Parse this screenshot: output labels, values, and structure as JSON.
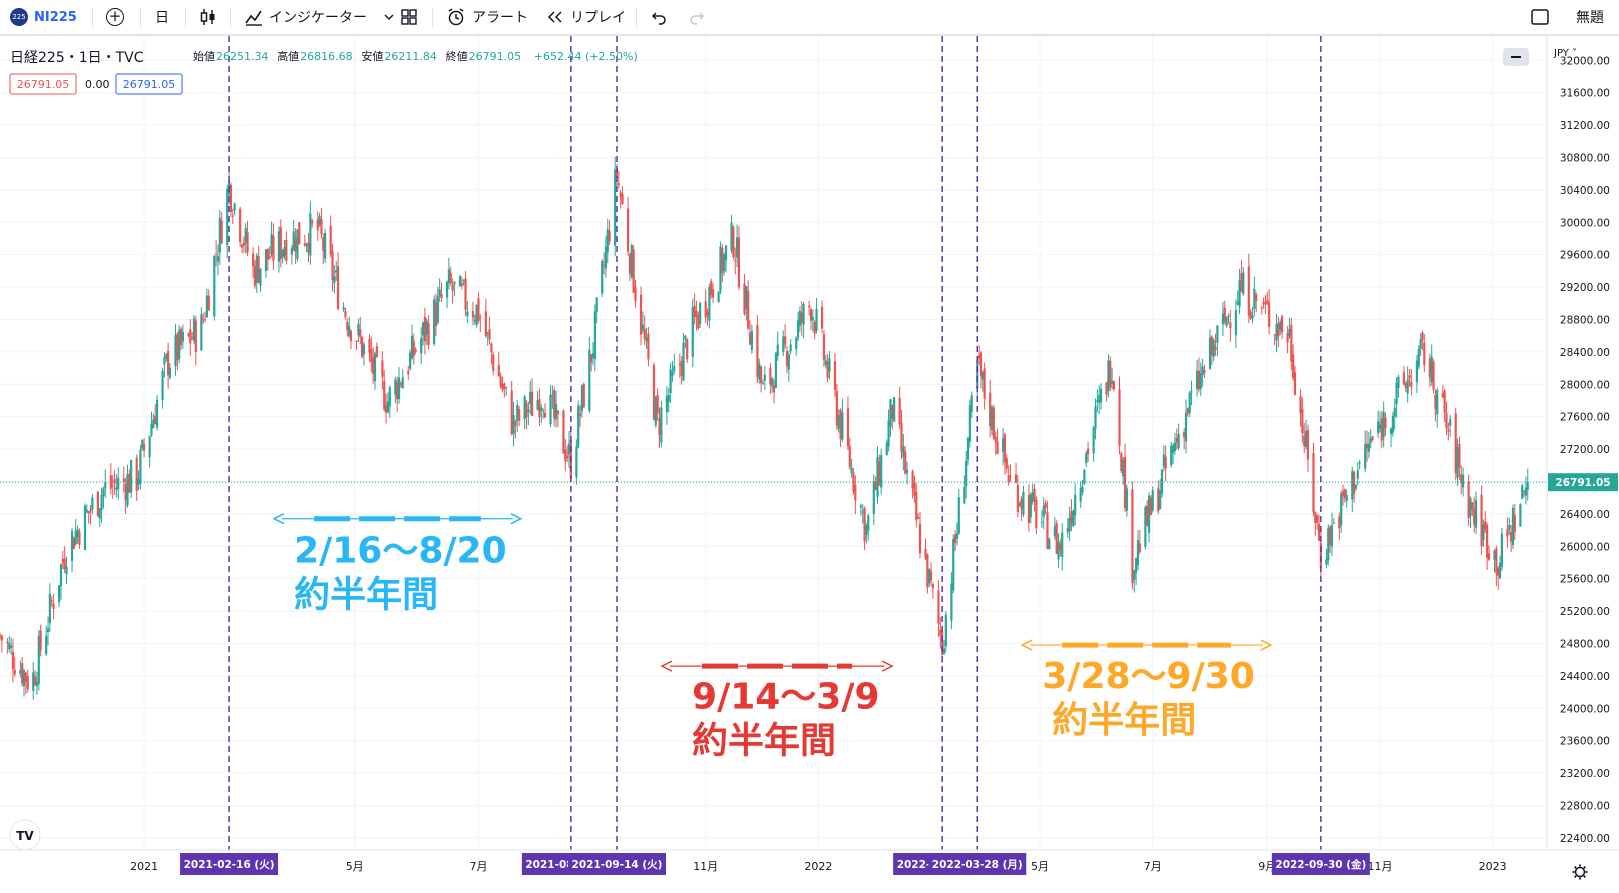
{
  "toolbar": {
    "symbol_badge": "225",
    "symbol": "NI225",
    "add_symbol": "+",
    "interval": "日",
    "indicators": "インジケーター",
    "alert": "アラート",
    "replay": "リプレイ",
    "layout_name": "無題"
  },
  "legend": {
    "title": "日経225・1日・TVC",
    "ohlc": [
      {
        "label": "始値",
        "value": "26251.34"
      },
      {
        "label": "高値",
        "value": "26816.68"
      },
      {
        "label": "安値",
        "value": "26211.84"
      },
      {
        "label": "終値",
        "value": "26791.05"
      }
    ],
    "change": "+652.44 (+2.50%)",
    "bid": "26791.05",
    "spread": "0.00",
    "ask": "26791.05"
  },
  "axis": {
    "currency": "JPY",
    "last_price_label": "26791.05",
    "brand_logo": "TV"
  },
  "chart_data": {
    "type": "candlestick",
    "title": "日経225・1日・TVC",
    "unit": "JPY",
    "ylim": [
      22250,
      32300
    ],
    "y_ticks": [
      22400,
      22800,
      23200,
      23600,
      24000,
      24400,
      24800,
      25200,
      25600,
      26000,
      26400,
      26800,
      27200,
      27600,
      28000,
      28400,
      28800,
      29200,
      29600,
      30000,
      30400,
      30800,
      31200,
      31600,
      32000
    ],
    "x_range": [
      "2020-10-15",
      "2023-01-25"
    ],
    "x_ticks": [
      {
        "date": "2021-01-01",
        "label": "2021"
      },
      {
        "date": "2021-04-25",
        "label": "5月"
      },
      {
        "date": "2021-07-01",
        "label": "7月"
      },
      {
        "date": "2021-11-01",
        "label": "11月"
      },
      {
        "date": "2022-01-01",
        "label": "2022"
      },
      {
        "date": "2022-05-01",
        "label": "5月"
      },
      {
        "date": "2022-07-01",
        "label": "7月"
      },
      {
        "date": "2022-09-01",
        "label": "9月"
      },
      {
        "date": "2022-11-01",
        "label": "11月"
      },
      {
        "date": "2023-01-01",
        "label": "2023"
      }
    ],
    "last_price": 26791.05,
    "colors": {
      "up": "#26a69a",
      "down": "#ef5350",
      "marker": "#5e35b1",
      "grid": "#f0f3fa"
    },
    "price_path": [
      [
        "2020-10-15",
        24900
      ],
      [
        "2020-11-01",
        24300
      ],
      [
        "2020-11-20",
        26000
      ],
      [
        "2020-12-10",
        26700
      ],
      [
        "2020-12-28",
        26850
      ],
      [
        "2021-01-14",
        28300
      ],
      [
        "2021-02-01",
        28700
      ],
      [
        "2021-02-16",
        30460
      ],
      [
        "2021-03-01",
        29400
      ],
      [
        "2021-03-20",
        29800
      ],
      [
        "2021-04-05",
        29900
      ],
      [
        "2021-04-20",
        28900
      ],
      [
        "2021-05-13",
        27800
      ],
      [
        "2021-06-15",
        29200
      ],
      [
        "2021-07-01",
        28900
      ],
      [
        "2021-07-20",
        27500
      ],
      [
        "2021-08-05",
        27900
      ],
      [
        "2021-08-20",
        27050
      ],
      [
        "2021-09-01",
        28500
      ],
      [
        "2021-09-14",
        30600
      ],
      [
        "2021-10-06",
        27500
      ],
      [
        "2021-10-25",
        28700
      ],
      [
        "2021-11-16",
        29800
      ],
      [
        "2021-12-02",
        27900
      ],
      [
        "2021-12-28",
        29000
      ],
      [
        "2022-01-27",
        26200
      ],
      [
        "2022-02-10",
        27700
      ],
      [
        "2022-03-09",
        24800
      ],
      [
        "2022-03-28",
        28200
      ],
      [
        "2022-04-15",
        26800
      ],
      [
        "2022-05-12",
        26000
      ],
      [
        "2022-06-09",
        28300
      ],
      [
        "2022-06-20",
        25800
      ],
      [
        "2022-07-20",
        27700
      ],
      [
        "2022-08-17",
        29200
      ],
      [
        "2022-09-13",
        28600
      ],
      [
        "2022-09-30",
        25900
      ],
      [
        "2022-10-25",
        27200
      ],
      [
        "2022-11-25",
        28400
      ],
      [
        "2022-12-20",
        26500
      ],
      [
        "2023-01-04",
        25800
      ],
      [
        "2023-01-20",
        26791
      ]
    ],
    "markers": [
      {
        "date": "2021-02-16",
        "label": "2021-02-16 (火)"
      },
      {
        "date": "2021-08-20",
        "label": "2021-08-20 (金)"
      },
      {
        "date": "2021-09-14",
        "label": "2021-09-14 (火)"
      },
      {
        "date": "2022-03-09",
        "label": "2022-03-09 (水)"
      },
      {
        "date": "2022-03-28",
        "label": "2022-03-28 (月)"
      },
      {
        "date": "2022-09-30",
        "label": "2022-09-30 (金)"
      }
    ],
    "annotations": [
      {
        "from": "2021-02-16",
        "to": "2021-08-20",
        "range_text": "2/16～8/20",
        "duration_text": "約半年間",
        "color": "#29b6f6",
        "arrow_price": 26340,
        "text_price": 25800
      },
      {
        "from": "2021-09-14",
        "to": "2022-03-09",
        "range_text": "9/14～3/9",
        "duration_text": "約半年間",
        "color": "#e53935",
        "arrow_price": 24520,
        "text_price": 24000
      },
      {
        "from": "2022-03-28",
        "to": "2022-09-30",
        "range_text": "3/28～9/30",
        "duration_text": "約半年間",
        "color": "#ffa726",
        "arrow_price": 24780,
        "text_price": 24250
      }
    ]
  }
}
